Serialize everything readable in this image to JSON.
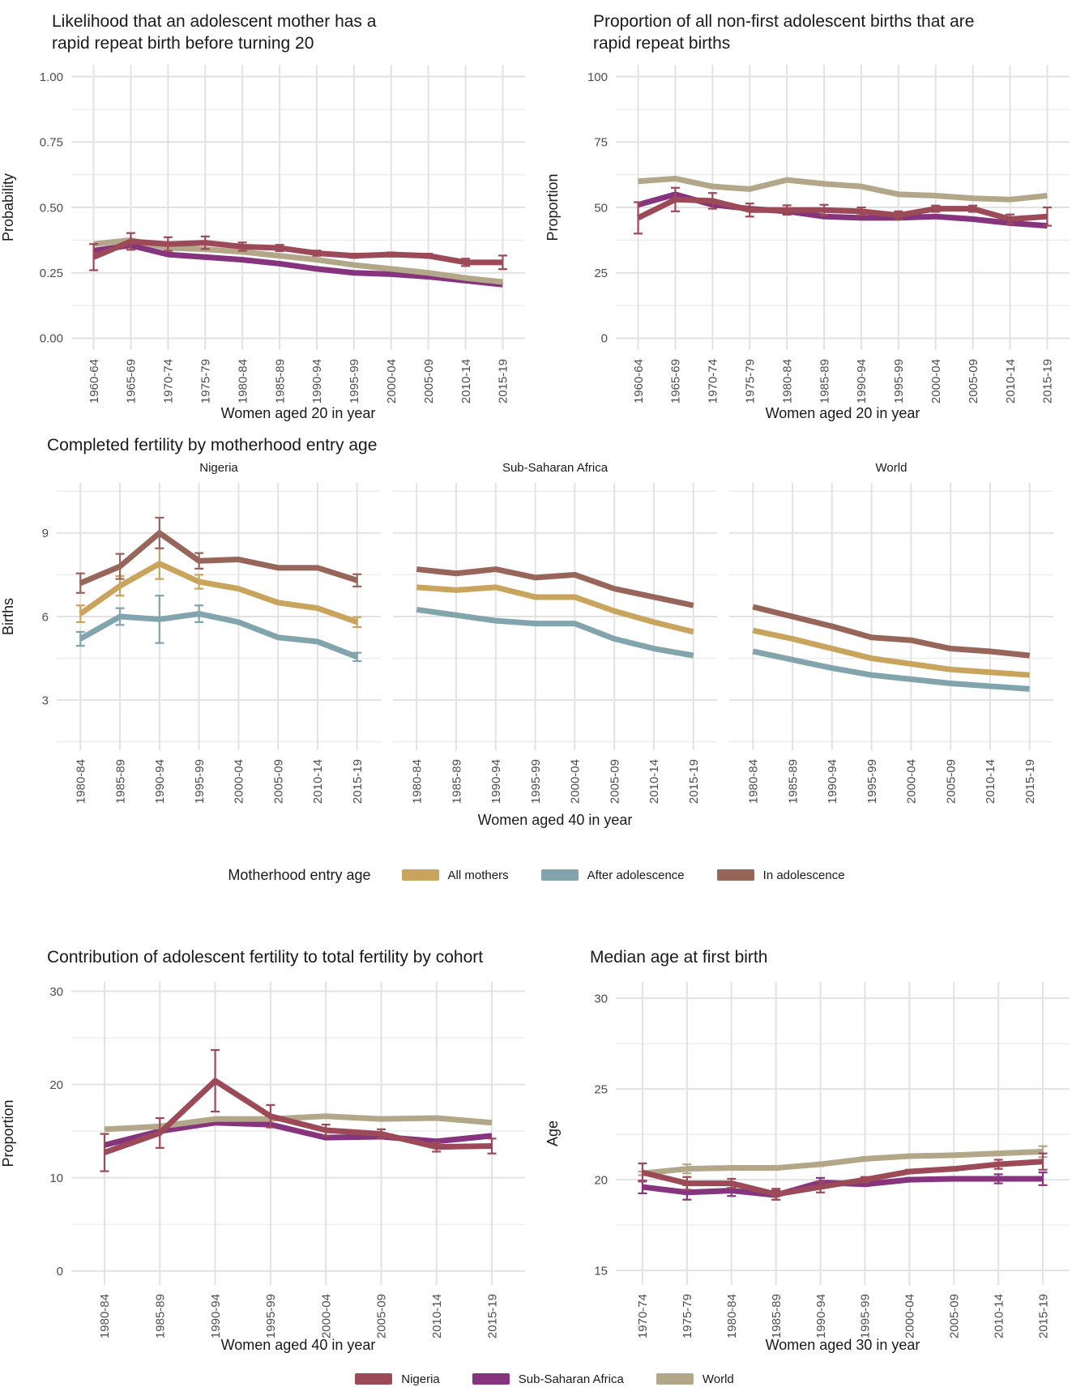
{
  "colors": {
    "nigeria": "#9c4a58",
    "ssa": "#86347e",
    "world": "#b3a78a",
    "all_mothers": "#c9a45c",
    "after_adolescence": "#82a5ad",
    "in_adolescence": "#98655a",
    "grid_major": "#e2e2e2",
    "grid_minor": "#ededed",
    "tick_label": "#4d4d4d",
    "text": "#1a1a1a"
  },
  "legends": {
    "motherhood": {
      "title": "Motherhood entry age",
      "items": [
        {
          "label": "All mothers",
          "color": "all_mothers"
        },
        {
          "label": "After adolescence",
          "color": "after_adolescence"
        },
        {
          "label": "In adolescence",
          "color": "in_adolescence"
        }
      ]
    },
    "region": {
      "items": [
        {
          "label": "Nigeria",
          "color": "nigeria"
        },
        {
          "label": "Sub-Saharan Africa",
          "color": "ssa"
        },
        {
          "label": "World",
          "color": "world"
        }
      ]
    }
  },
  "chart_data": [
    {
      "id": "chart-rrb-likelihood",
      "type": "line",
      "title_lines": [
        "Likelihood that an adolescent mother has a",
        "rapid repeat birth before turning 20"
      ],
      "xlabel": "Women aged 20 in year",
      "ylabel": "Probability",
      "categories": [
        "1960-64",
        "1965-69",
        "1970-74",
        "1975-79",
        "1980-84",
        "1985-89",
        "1990-94",
        "1995-99",
        "2000-04",
        "2005-09",
        "2010-14",
        "2015-19"
      ],
      "ylim": [
        -0.045,
        1.045
      ],
      "yticks": [
        0,
        0.25,
        0.5,
        0.75,
        1
      ],
      "ytick_labels": [
        "0.00",
        "0.25",
        "0.50",
        "0.75",
        "1.00"
      ],
      "grid": true,
      "legend_position": "bottom-shared",
      "series": [
        {
          "name": "Sub-Saharan Africa",
          "color": "ssa",
          "values": [
            0.335,
            0.355,
            0.32,
            0.31,
            0.3,
            0.285,
            0.265,
            0.25,
            0.245,
            0.235,
            0.22,
            0.205
          ]
        },
        {
          "name": "World",
          "color": "world",
          "values": [
            0.36,
            0.375,
            0.345,
            0.34,
            0.33,
            0.315,
            0.3,
            0.28,
            0.265,
            0.25,
            0.23,
            0.215
          ]
        },
        {
          "name": "Nigeria",
          "color": "nigeria",
          "values": [
            0.31,
            0.37,
            0.36,
            0.365,
            0.35,
            0.345,
            0.325,
            0.315,
            0.32,
            0.315,
            0.29,
            0.29
          ],
          "err": [
            0.05,
            0.032,
            0.026,
            0.024,
            0.016,
            0.012,
            0.01,
            0.008,
            0.008,
            0.008,
            0.014,
            0.026
          ]
        }
      ]
    },
    {
      "id": "chart-rrb-proportion",
      "type": "line",
      "title_lines": [
        "Proportion of all non-first adolescent births that are",
        "rapid repeat births"
      ],
      "xlabel": "Women aged 20 in year",
      "ylabel": "Proportion",
      "categories": [
        "1960-64",
        "1965-69",
        "1970-74",
        "1975-79",
        "1980-84",
        "1985-89",
        "1990-94",
        "1995-99",
        "2000-04",
        "2005-09",
        "2010-14",
        "2015-19"
      ],
      "ylim": [
        -4.5,
        104.5
      ],
      "yticks": [
        0,
        25,
        50,
        75,
        100
      ],
      "ytick_labels": [
        "0",
        "25",
        "50",
        "75",
        "100"
      ],
      "grid": true,
      "legend_position": "bottom-shared",
      "series": [
        {
          "name": "Sub-Saharan Africa",
          "color": "ssa",
          "values": [
            51,
            55,
            51,
            49.5,
            48.5,
            46.5,
            46,
            46,
            46.5,
            45.5,
            44,
            43
          ]
        },
        {
          "name": "World",
          "color": "world",
          "values": [
            60,
            61,
            58,
            57,
            60.5,
            59,
            58,
            55,
            54.5,
            53.5,
            53,
            54.5
          ]
        },
        {
          "name": "Nigeria",
          "color": "nigeria",
          "values": [
            46,
            53,
            52.5,
            49,
            49,
            49,
            48.5,
            47,
            49.5,
            49.5,
            45.5,
            46.5
          ],
          "err": [
            6,
            4.5,
            3,
            2.5,
            1.8,
            2,
            1.5,
            1.5,
            1.2,
            1.2,
            1.8,
            3.5
          ]
        }
      ]
    },
    {
      "id": "chart-completed-fertility",
      "type": "line",
      "title": "Completed fertility by motherhood entry age",
      "xlabel": "Women aged 40 in year",
      "ylabel": "Births",
      "categories": [
        "1980-84",
        "1985-89",
        "1990-94",
        "1995-99",
        "2000-04",
        "2005-09",
        "2010-14",
        "2015-19"
      ],
      "ylim": [
        1.2,
        10.8
      ],
      "yticks": [
        3,
        6,
        9
      ],
      "ytick_labels": [
        "3",
        "6",
        "9"
      ],
      "grid": true,
      "legend_position": "bottom",
      "facets": [
        {
          "label": "Nigeria",
          "series": [
            {
              "name": "After adolescence",
              "color": "after_adolescence",
              "values": [
                5.2,
                6.0,
                5.9,
                6.1,
                5.8,
                5.25,
                5.1,
                4.55
              ],
              "err": [
                0.25,
                0.3,
                0.85,
                0.3,
                0,
                0,
                0,
                0.15
              ]
            },
            {
              "name": "All mothers",
              "color": "all_mothers",
              "values": [
                6.1,
                7.1,
                7.9,
                7.25,
                7.0,
                6.5,
                6.3,
                5.8
              ],
              "err": [
                0.3,
                0.35,
                0.55,
                0.25,
                0,
                0,
                0,
                0.18
              ]
            },
            {
              "name": "In adolescence",
              "color": "in_adolescence",
              "values": [
                7.2,
                7.8,
                9.0,
                8.0,
                8.05,
                7.75,
                7.75,
                7.3
              ],
              "err": [
                0.35,
                0.45,
                0.55,
                0.28,
                0,
                0,
                0,
                0.22
              ]
            }
          ]
        },
        {
          "label": "Sub-Saharan Africa",
          "series": [
            {
              "name": "After adolescence",
              "color": "after_adolescence",
              "values": [
                6.25,
                6.05,
                5.85,
                5.75,
                5.75,
                5.2,
                4.85,
                4.6
              ]
            },
            {
              "name": "All mothers",
              "color": "all_mothers",
              "values": [
                7.05,
                6.95,
                7.05,
                6.7,
                6.7,
                6.2,
                5.8,
                5.45
              ]
            },
            {
              "name": "In adolescence",
              "color": "in_adolescence",
              "values": [
                7.7,
                7.55,
                7.7,
                7.4,
                7.5,
                7.0,
                6.7,
                6.4
              ]
            }
          ]
        },
        {
          "label": "World",
          "series": [
            {
              "name": "After adolescence",
              "color": "after_adolescence",
              "values": [
                4.75,
                4.45,
                4.15,
                3.9,
                3.75,
                3.6,
                3.5,
                3.4
              ]
            },
            {
              "name": "All mothers",
              "color": "all_mothers",
              "values": [
                5.5,
                5.2,
                4.85,
                4.5,
                4.3,
                4.1,
                4.0,
                3.9
              ]
            },
            {
              "name": "In adolescence",
              "color": "in_adolescence",
              "values": [
                6.35,
                6.0,
                5.65,
                5.25,
                5.15,
                4.85,
                4.75,
                4.6
              ]
            }
          ]
        }
      ]
    },
    {
      "id": "chart-contribution",
      "type": "line",
      "title": "Contribution of adolescent fertility to total fertility by cohort",
      "xlabel": "Women aged 40 in year",
      "ylabel": "Proportion",
      "categories": [
        "1980-84",
        "1985-89",
        "1990-94",
        "1995-99",
        "2000-04",
        "2005-09",
        "2010-14",
        "2015-19"
      ],
      "ylim": [
        -1.5,
        31
      ],
      "yticks": [
        0,
        10,
        20,
        30
      ],
      "ytick_labels": [
        "0",
        "10",
        "20",
        "30"
      ],
      "grid": true,
      "legend_position": "bottom-shared",
      "series": [
        {
          "name": "Sub-Saharan Africa",
          "color": "ssa",
          "values": [
            13.5,
            15.0,
            15.9,
            15.7,
            14.3,
            14.4,
            13.9,
            14.5
          ]
        },
        {
          "name": "World",
          "color": "world",
          "values": [
            15.2,
            15.5,
            16.3,
            16.3,
            16.6,
            16.3,
            16.4,
            15.9
          ]
        },
        {
          "name": "Nigeria",
          "color": "nigeria",
          "values": [
            12.7,
            14.8,
            20.4,
            16.6,
            15.1,
            14.7,
            13.3,
            13.4
          ],
          "err": [
            2.0,
            1.6,
            3.3,
            1.2,
            0.6,
            0.5,
            0.5,
            0.8
          ]
        }
      ]
    },
    {
      "id": "chart-median-age",
      "type": "line",
      "title": "Median age at first birth",
      "xlabel": "Women aged 30 in year",
      "ylabel": "Age",
      "categories": [
        "1970-74",
        "1975-79",
        "1980-84",
        "1985-89",
        "1990-94",
        "1995-99",
        "2000-04",
        "2005-09",
        "2010-14",
        "2015-19"
      ],
      "ylim": [
        14.2,
        30.9
      ],
      "yticks": [
        15,
        20,
        25,
        30
      ],
      "ytick_labels": [
        "15",
        "20",
        "25",
        "30"
      ],
      "grid": true,
      "legend_position": "bottom-shared",
      "series": [
        {
          "name": "Sub-Saharan Africa",
          "color": "ssa",
          "values": [
            19.6,
            19.3,
            19.4,
            19.15,
            19.85,
            19.75,
            20.0,
            20.05,
            20.05,
            20.05
          ],
          "err": [
            0.35,
            0.4,
            0.3,
            0.25,
            0.25,
            0.1,
            0.1,
            0.1,
            0.25,
            0.35
          ]
        },
        {
          "name": "World",
          "color": "world",
          "values": [
            20.35,
            20.6,
            20.65,
            20.65,
            20.85,
            21.15,
            21.3,
            21.35,
            21.45,
            21.55
          ],
          "err": [
            0.1,
            0.25,
            0.1,
            0.1,
            0.1,
            0.1,
            0.05,
            0.05,
            0.1,
            0.3
          ]
        },
        {
          "name": "Nigeria",
          "color": "nigeria",
          "values": [
            20.4,
            19.8,
            19.8,
            19.2,
            19.6,
            20.0,
            20.45,
            20.6,
            20.85,
            21.0
          ],
          "err": [
            0.5,
            0.35,
            0.25,
            0.3,
            0.3,
            0.15,
            0.1,
            0.1,
            0.25,
            0.45
          ]
        }
      ]
    }
  ]
}
